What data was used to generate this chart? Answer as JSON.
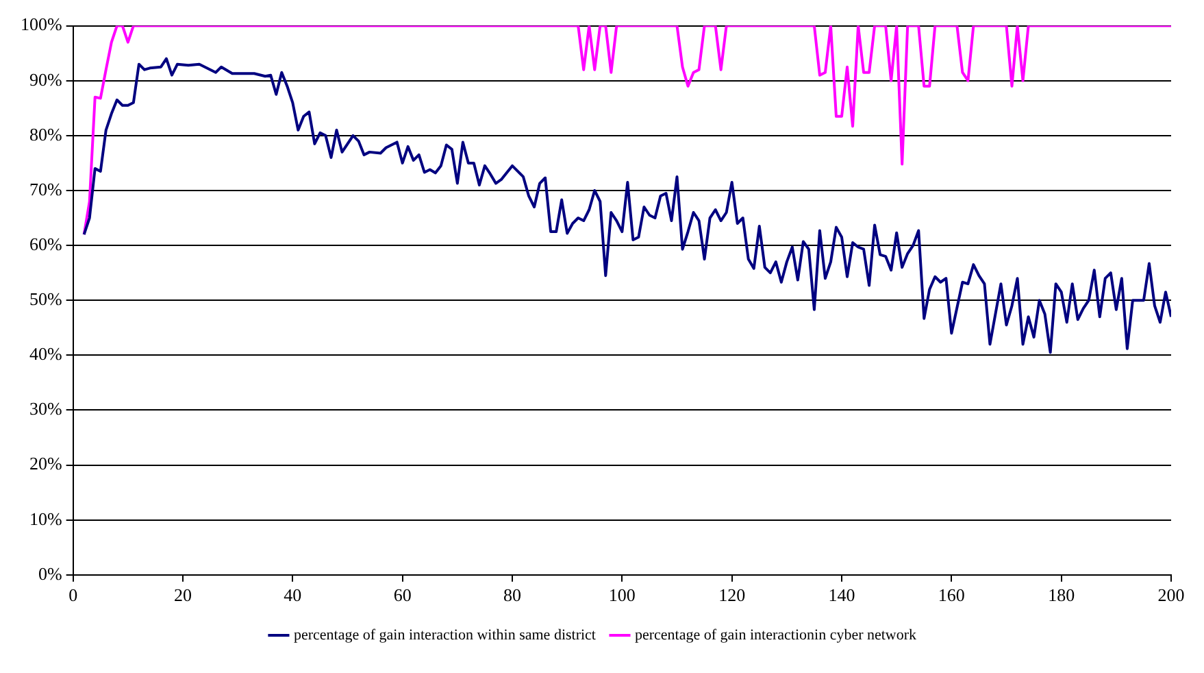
{
  "chart_data": {
    "type": "line",
    "xlim": [
      0,
      200
    ],
    "xticks": [
      0,
      20,
      40,
      60,
      80,
      100,
      120,
      140,
      160,
      180,
      200
    ],
    "ylim": [
      0,
      100
    ],
    "yticks": [
      {
        "value": 0,
        "label": "0%"
      },
      {
        "value": 10,
        "label": "10%"
      },
      {
        "value": 20,
        "label": "20%"
      },
      {
        "value": 30,
        "label": "30%"
      },
      {
        "value": 40,
        "label": "40%"
      },
      {
        "value": 50,
        "label": "50%"
      },
      {
        "value": 60,
        "label": "60%"
      },
      {
        "value": 70,
        "label": "70%"
      },
      {
        "value": 80,
        "label": "80%"
      },
      {
        "value": 90,
        "label": "90%"
      },
      {
        "value": 100,
        "label": "100%"
      }
    ],
    "grid": "y",
    "legend": "bottom",
    "marker": "none",
    "line_style": "solid",
    "series": [
      {
        "name": "percentage of gain interaction within same district",
        "color": "#000080",
        "x": [
          2,
          3,
          4,
          5,
          6,
          7,
          8,
          9,
          10,
          11,
          12,
          13,
          14,
          16,
          17,
          18,
          19,
          21,
          23,
          24,
          26,
          27,
          29,
          31,
          33,
          35,
          36,
          37,
          38,
          39,
          40,
          41,
          42,
          43,
          44,
          45,
          46,
          47,
          48,
          49,
          50,
          51,
          52,
          53,
          54,
          56,
          57,
          59,
          60,
          61,
          62,
          63,
          64,
          65,
          66,
          67,
          68,
          69,
          70,
          71,
          72,
          73,
          74,
          75,
          76,
          77,
          78,
          80,
          82,
          83,
          84,
          85,
          86,
          87,
          88,
          89,
          90,
          91,
          92,
          93,
          94,
          95,
          96,
          97,
          98,
          99,
          100,
          101,
          102,
          103,
          104,
          105,
          106,
          107,
          108,
          109,
          110,
          111,
          112,
          113,
          114,
          115,
          116,
          117,
          118,
          119,
          120,
          121,
          122,
          123,
          124,
          125,
          126,
          127,
          128,
          129,
          130,
          131,
          132,
          133,
          134,
          135,
          136,
          137,
          138,
          139,
          140,
          141,
          142,
          143,
          144,
          145,
          146,
          147,
          148,
          149,
          150,
          151,
          152,
          153,
          154,
          155,
          156,
          157,
          158,
          159,
          160,
          162,
          163,
          164,
          165,
          166,
          167,
          168,
          169,
          170,
          171,
          172,
          173,
          174,
          175,
          176,
          177,
          178,
          179,
          180,
          181,
          182,
          183,
          184,
          185,
          186,
          187,
          188,
          189,
          190,
          191,
          192,
          193,
          195,
          196,
          197,
          198,
          199,
          200
        ],
        "values": [
          62,
          65,
          74,
          73.5,
          81,
          84,
          86.5,
          85.5,
          85.5,
          86,
          93,
          92,
          92.3,
          92.5,
          94,
          91,
          93,
          92.8,
          93,
          92.5,
          91.5,
          92.5,
          91.3,
          91.3,
          91.3,
          90.8,
          91,
          87.5,
          91.5,
          89,
          86,
          81,
          83.5,
          84.3,
          78.5,
          80.5,
          80,
          76,
          81,
          77,
          78.5,
          80,
          79,
          76.5,
          77,
          76.8,
          77.8,
          78.8,
          75,
          78,
          75.5,
          76.5,
          73.3,
          73.8,
          73.2,
          74.5,
          78.3,
          77.5,
          71.3,
          78.8,
          75,
          75,
          71,
          74.5,
          73,
          71.3,
          72,
          74.5,
          72.5,
          69,
          67,
          71.3,
          72.3,
          62.5,
          62.5,
          68.3,
          62.2,
          64,
          65,
          64.5,
          66.5,
          70,
          68,
          54.5,
          66,
          64.5,
          62.5,
          71.5,
          61,
          61.5,
          67,
          65.5,
          65,
          69,
          69.5,
          64.5,
          72.5,
          59.3,
          62.5,
          66,
          64.5,
          57.5,
          65,
          66.5,
          64.5,
          66,
          71.5,
          64,
          65,
          57.5,
          55.8,
          63.5,
          56,
          55,
          57,
          53.3,
          57,
          59.7,
          53.7,
          60.7,
          59.3,
          48.3,
          62.7,
          54,
          57,
          63.3,
          61.5,
          54.3,
          60.5,
          59.7,
          59.3,
          52.7,
          63.7,
          58.3,
          58,
          55.5,
          62.3,
          56,
          58.5,
          60,
          62.7,
          46.7,
          52,
          54.3,
          53.3,
          54,
          44,
          53.3,
          53,
          56.5,
          54.5,
          53,
          42,
          47.5,
          53,
          45.5,
          49,
          54,
          42,
          47,
          43.3,
          50,
          47.5,
          40.5,
          53,
          51.5,
          46,
          53,
          46.5,
          48.5,
          50,
          55.5,
          47,
          54,
          55,
          48.3,
          54,
          41.2,
          50,
          50,
          56.7,
          49,
          46,
          51.5,
          47
        ]
      },
      {
        "name": "percentage of gain interactionin cyber network",
        "color": "#ff00ff",
        "x": [
          2,
          3,
          4,
          5,
          6,
          7,
          8,
          9,
          10,
          11,
          92,
          93,
          94,
          95,
          96,
          97,
          98,
          99,
          110,
          111,
          112,
          113,
          114,
          115,
          117,
          118,
          119,
          135,
          136,
          137,
          138,
          139,
          140,
          141,
          142,
          143,
          144,
          145,
          146,
          148,
          149,
          150,
          151,
          152,
          154,
          155,
          156,
          157,
          161,
          162,
          163,
          164,
          170,
          171,
          172,
          173,
          174,
          200
        ],
        "values": [
          62,
          68,
          87,
          86.8,
          92,
          97,
          100,
          100,
          97,
          100,
          100,
          92,
          100,
          92,
          100,
          100,
          91.5,
          100,
          100,
          92.5,
          89,
          91.5,
          92,
          100,
          100,
          92,
          100,
          100,
          91,
          91.5,
          100,
          83.5,
          83.5,
          92.5,
          81.7,
          100,
          91.5,
          91.5,
          100,
          100,
          90,
          100,
          74.8,
          100,
          100,
          89,
          89,
          100,
          100,
          91.5,
          90,
          100,
          100,
          89,
          100,
          90,
          100,
          100
        ]
      }
    ]
  }
}
